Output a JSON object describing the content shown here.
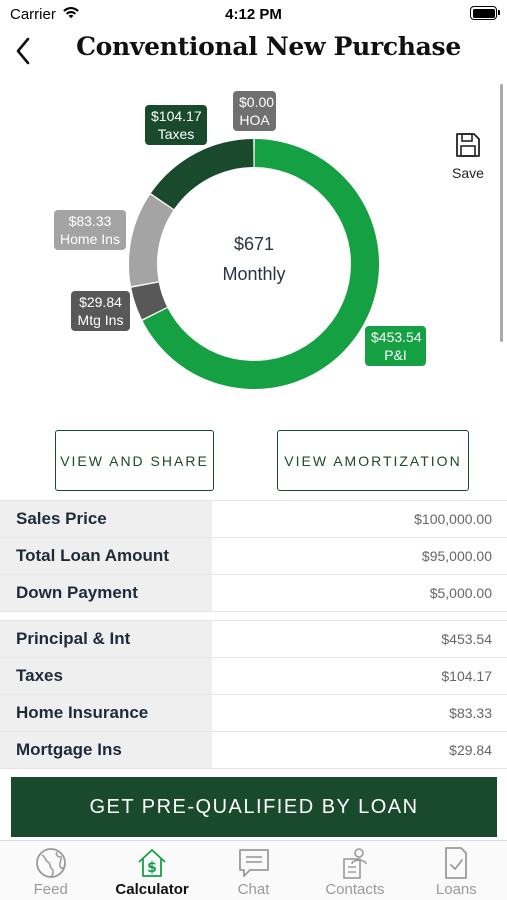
{
  "status_bar": {
    "carrier": "Carrier",
    "time": "4:12 PM"
  },
  "header": {
    "title": "Conventional New Purchase"
  },
  "chart_data": {
    "type": "pie",
    "center_amount": "$671",
    "center_label": "Monthly",
    "slices": [
      {
        "name": "P&I",
        "label": "$453.54",
        "value": 453.54,
        "color": "#14a043"
      },
      {
        "name": "Mtg Ins",
        "label": "$29.84",
        "value": 29.84,
        "color": "#585858"
      },
      {
        "name": "Home Ins",
        "label": "$83.33",
        "value": 83.33,
        "color": "#a4a4a4"
      },
      {
        "name": "Taxes",
        "label": "$104.17",
        "value": 104.17,
        "color": "#1a4a2c"
      },
      {
        "name": "HOA",
        "label": "$0.00",
        "value": 0.0,
        "color": "#707070"
      }
    ]
  },
  "save": {
    "label": "Save"
  },
  "actions": {
    "view_share": "VIEW AND SHARE",
    "view_amortization": "VIEW AMORTIZATION"
  },
  "loan_summary": [
    {
      "label": "Sales Price",
      "value": "$100,000.00"
    },
    {
      "label": "Total Loan Amount",
      "value": "$95,000.00"
    },
    {
      "label": "Down Payment",
      "value": "$5,000.00"
    }
  ],
  "payment_breakdown": [
    {
      "label": "Principal & Int",
      "value": "$453.54"
    },
    {
      "label": "Taxes",
      "value": "$104.17"
    },
    {
      "label": "Home Insurance",
      "value": "$83.33"
    },
    {
      "label": "Mortgage Ins",
      "value": "$29.84"
    }
  ],
  "cta": {
    "label": "GET PRE-QUALIFIED BY LOAN"
  },
  "tabs": [
    {
      "label": "Feed",
      "icon": "globe-icon"
    },
    {
      "label": "Calculator",
      "icon": "house-dollar-icon"
    },
    {
      "label": "Chat",
      "icon": "chat-icon"
    },
    {
      "label": "Contacts",
      "icon": "contacts-icon"
    },
    {
      "label": "Loans",
      "icon": "document-check-icon"
    }
  ],
  "colors": {
    "brand_dark": "#1a4a2c",
    "brand_green": "#14a043",
    "tab_active": "#14a043",
    "tab_inactive": "#9a9a9a"
  }
}
